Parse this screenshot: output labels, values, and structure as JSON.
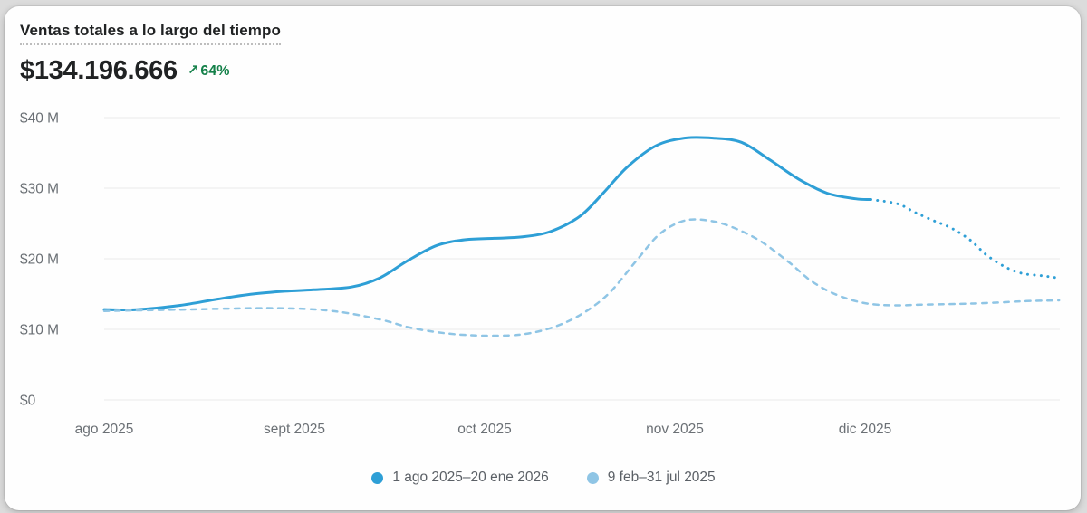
{
  "header": {
    "title": "Ventas totales a lo largo del tiempo",
    "total": "$134.196.666",
    "trend_arrow": "↗",
    "trend_pct": "64%"
  },
  "colors": {
    "primary_line": "#2e9fd6",
    "comparison_line": "#8fc5e5",
    "trend_green": "#15814a",
    "axis_text": "#6b7075",
    "grid": "#e9e9e9"
  },
  "chart_data": {
    "type": "line",
    "title": "Ventas totales a lo largo del tiempo",
    "xlabel": "",
    "ylabel": "",
    "ylim": [
      0,
      40
    ],
    "grid": true,
    "legend_position": "bottom",
    "x_months_from": "ago 2025",
    "y_ticks": [
      {
        "value": 0,
        "label": "$0"
      },
      {
        "value": 10,
        "label": "$10 M"
      },
      {
        "value": 20,
        "label": "$20 M"
      },
      {
        "value": 30,
        "label": "$30 M"
      },
      {
        "value": 40,
        "label": "$40 M"
      }
    ],
    "x_ticks": [
      {
        "t": 0,
        "label": "ago 2025"
      },
      {
        "t": 1,
        "label": "sept 2025"
      },
      {
        "t": 2,
        "label": "oct 2025"
      },
      {
        "t": 3,
        "label": "nov 2025"
      },
      {
        "t": 4,
        "label": "dic 2025"
      }
    ],
    "legend": [
      {
        "label": "1 ago 2025–20 ene 2026",
        "color": "#2e9fd6"
      },
      {
        "label": "9 feb–31 jul 2025",
        "color": "#8fc5e5"
      }
    ],
    "series": [
      {
        "name": "1 ago 2025–20 ene 2026",
        "segment": "actual",
        "style": "solid",
        "color": "#2e9fd6",
        "points_unit": [
          "months_from_ago_2025",
          "USD_millions"
        ],
        "points": [
          [
            0,
            12.8
          ],
          [
            0.17,
            12.8
          ],
          [
            0.4,
            13.4
          ],
          [
            0.6,
            14.3
          ],
          [
            0.78,
            15.0
          ],
          [
            0.95,
            15.4
          ],
          [
            1.1,
            15.6
          ],
          [
            1.3,
            16.0
          ],
          [
            1.45,
            17.3
          ],
          [
            1.6,
            19.8
          ],
          [
            1.75,
            21.9
          ],
          [
            1.9,
            22.7
          ],
          [
            2.05,
            22.9
          ],
          [
            2.2,
            23.1
          ],
          [
            2.35,
            23.9
          ],
          [
            2.5,
            26.0
          ],
          [
            2.62,
            29.2
          ],
          [
            2.75,
            33.0
          ],
          [
            2.9,
            36.0
          ],
          [
            3.05,
            37.1
          ],
          [
            3.2,
            37.1
          ],
          [
            3.35,
            36.5
          ],
          [
            3.5,
            34.0
          ],
          [
            3.65,
            31.3
          ],
          [
            3.8,
            29.3
          ],
          [
            3.95,
            28.5
          ],
          [
            4.03,
            28.4
          ]
        ]
      },
      {
        "name": "1 ago 2025–20 ene 2026",
        "segment": "projected",
        "style": "dotted",
        "color": "#2e9fd6",
        "points_unit": [
          "months_from_ago_2025",
          "USD_millions"
        ],
        "points": [
          [
            4.03,
            28.4
          ],
          [
            4.17,
            27.8
          ],
          [
            4.26,
            26.6
          ],
          [
            4.36,
            25.4
          ],
          [
            4.45,
            24.4
          ],
          [
            4.55,
            22.7
          ],
          [
            4.64,
            20.5
          ],
          [
            4.74,
            18.8
          ],
          [
            4.83,
            17.9
          ],
          [
            4.93,
            17.6
          ],
          [
            5.01,
            17.3
          ]
        ]
      },
      {
        "name": "9 feb–31 jul 2025",
        "segment": "comparison",
        "style": "dashed",
        "color": "#8fc5e5",
        "points_unit": [
          "months_from_ago_2025",
          "USD_millions"
        ],
        "points": [
          [
            0,
            12.6
          ],
          [
            0.4,
            12.8
          ],
          [
            0.9,
            13.0
          ],
          [
            1.2,
            12.6
          ],
          [
            1.45,
            11.4
          ],
          [
            1.6,
            10.3
          ],
          [
            1.75,
            9.6
          ],
          [
            1.9,
            9.2
          ],
          [
            2.05,
            9.1
          ],
          [
            2.2,
            9.3
          ],
          [
            2.35,
            10.2
          ],
          [
            2.5,
            12.0
          ],
          [
            2.65,
            15.0
          ],
          [
            2.8,
            19.8
          ],
          [
            2.92,
            23.5
          ],
          [
            3.05,
            25.4
          ],
          [
            3.18,
            25.4
          ],
          [
            3.3,
            24.5
          ],
          [
            3.45,
            22.5
          ],
          [
            3.6,
            19.5
          ],
          [
            3.72,
            16.8
          ],
          [
            3.85,
            14.9
          ],
          [
            4.0,
            13.7
          ],
          [
            4.15,
            13.4
          ],
          [
            4.3,
            13.5
          ],
          [
            4.5,
            13.6
          ],
          [
            4.7,
            13.8
          ],
          [
            4.85,
            14.0
          ],
          [
            5.02,
            14.1
          ]
        ]
      }
    ]
  }
}
